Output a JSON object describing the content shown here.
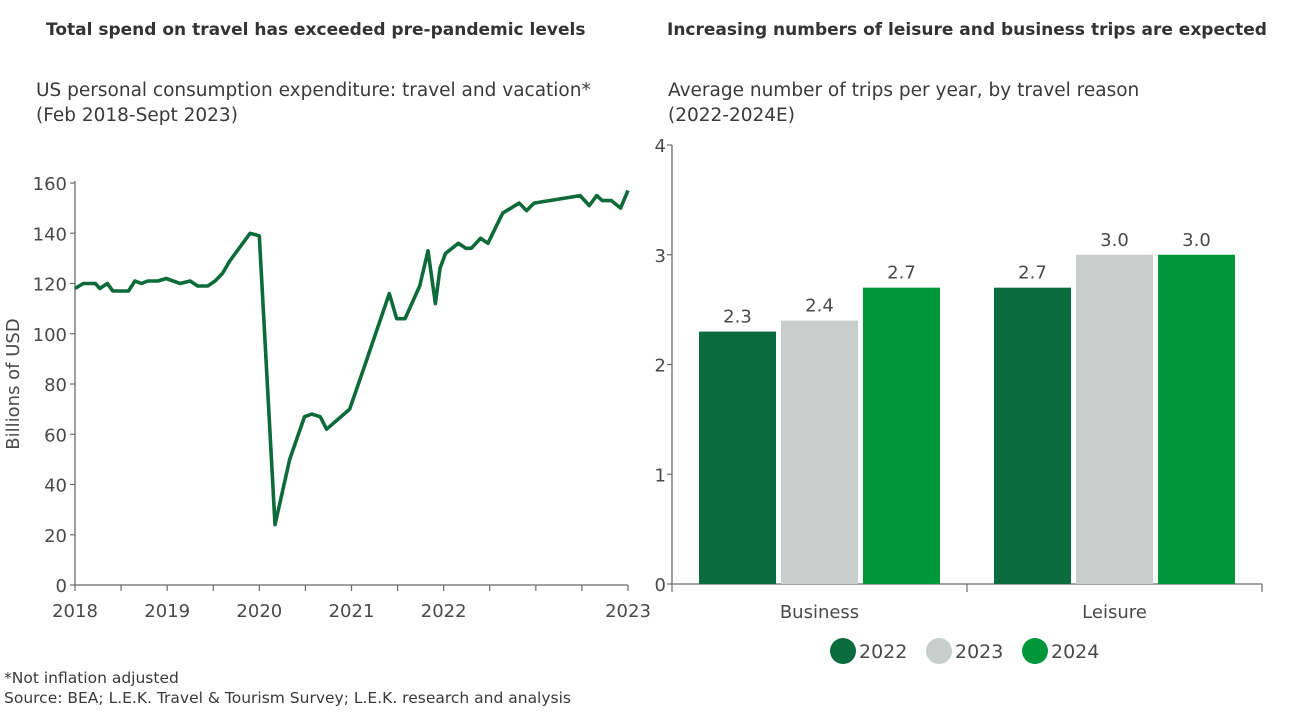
{
  "chart_data": [
    {
      "type": "line",
      "heading": "Total spend on travel has exceeded pre-pandemic levels",
      "title": "US personal consumption expenditure: travel and vacation*",
      "subtitle": "(Feb 2018-Sept 2023)",
      "ylabel": "Billions of USD",
      "xlabel": "",
      "ylim": [
        0,
        160
      ],
      "yticks": [
        0,
        20,
        40,
        60,
        80,
        100,
        120,
        140,
        160
      ],
      "xtick_labels": [
        "2018",
        "2019",
        "2020",
        "2021",
        "2022",
        "2023"
      ],
      "grid": false,
      "color": "#0d6b3a",
      "points": [
        [
          2018.0,
          118
        ],
        [
          2018.09,
          120
        ],
        [
          2018.22,
          120
        ],
        [
          2018.27,
          118
        ],
        [
          2018.35,
          120
        ],
        [
          2018.41,
          117
        ],
        [
          2018.58,
          117
        ],
        [
          2018.65,
          121
        ],
        [
          2018.72,
          120
        ],
        [
          2018.79,
          121
        ],
        [
          2018.9,
          121
        ],
        [
          2018.99,
          122
        ],
        [
          2019.14,
          120
        ],
        [
          2019.25,
          121
        ],
        [
          2019.33,
          119
        ],
        [
          2019.44,
          119
        ],
        [
          2019.52,
          121
        ],
        [
          2019.6,
          124
        ],
        [
          2019.68,
          129
        ],
        [
          2019.9,
          140
        ],
        [
          2020.0,
          139
        ],
        [
          2020.17,
          24
        ],
        [
          2020.33,
          50
        ],
        [
          2020.49,
          67
        ],
        [
          2020.57,
          68
        ],
        [
          2020.66,
          67
        ],
        [
          2020.73,
          62
        ],
        [
          2020.98,
          70
        ],
        [
          2021.15,
          88
        ],
        [
          2021.28,
          102
        ],
        [
          2021.41,
          116
        ],
        [
          2021.49,
          106
        ],
        [
          2021.58,
          106
        ],
        [
          2021.74,
          119
        ],
        [
          2021.83,
          133
        ],
        [
          2021.91,
          112
        ],
        [
          2021.96,
          126
        ],
        [
          2022.01,
          132
        ],
        [
          2022.08,
          136
        ],
        [
          2022.12,
          134
        ],
        [
          2022.15,
          134
        ],
        [
          2022.2,
          138
        ],
        [
          2022.24,
          136
        ],
        [
          2022.32,
          148
        ],
        [
          2022.41,
          152
        ],
        [
          2022.45,
          149
        ],
        [
          2022.49,
          152
        ],
        [
          2022.74,
          155
        ],
        [
          2022.79,
          151
        ],
        [
          2022.83,
          155
        ],
        [
          2022.86,
          153
        ],
        [
          2022.91,
          153
        ],
        [
          2022.96,
          150
        ],
        [
          2023.0,
          157
        ]
      ]
    },
    {
      "type": "bar",
      "heading": "Increasing numbers of leisure and business trips are expected",
      "title": "Average number of trips per year, by travel reason",
      "subtitle": "(2022-2024E)",
      "categories": [
        "Business",
        "Leisure"
      ],
      "ylim": [
        0,
        4
      ],
      "yticks": [
        0,
        1,
        2,
        3,
        4
      ],
      "grid": false,
      "legend_position": "bottom",
      "series": [
        {
          "name": "2022",
          "color": "#0a6b3d",
          "values": [
            2.3,
            2.7
          ],
          "labels": [
            "2.3",
            "2.7"
          ]
        },
        {
          "name": "2023",
          "color": "#c6cfcc",
          "values": [
            2.4,
            3.0
          ],
          "labels": [
            "2.4",
            "3.0"
          ]
        },
        {
          "name": "2024",
          "color": "#00963a",
          "values": [
            2.7,
            3.0
          ],
          "labels": [
            "2.7",
            "3.0"
          ]
        }
      ]
    }
  ],
  "footnotes": {
    "note": "*Not inflation adjusted",
    "source": "Source: BEA; L.E.K. Travel & Tourism Survey; L.E.K. research and analysis"
  }
}
